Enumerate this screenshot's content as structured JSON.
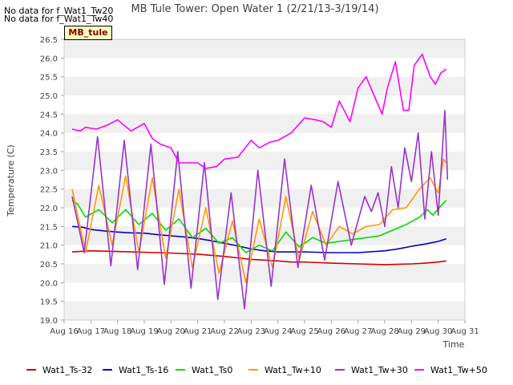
{
  "notes": [
    "No data for f_Wat1_Tw20",
    "No data for f_Wat1_Tw40"
  ],
  "site_tag": "MB_tule",
  "chart_data": {
    "type": "line",
    "title": "MB Tule Tower: Open Water 1 (2/21/13-3/19/14)",
    "xlabel": "Time",
    "ylabel": "Temperature (C)",
    "ylim": [
      19.0,
      26.5
    ],
    "yticks": [
      "19.0",
      "19.5",
      "20.0",
      "20.5",
      "21.0",
      "21.5",
      "22.0",
      "22.5",
      "23.0",
      "23.5",
      "24.0",
      "24.5",
      "25.0",
      "25.5",
      "26.0",
      "26.5"
    ],
    "xlim": [
      16,
      31
    ],
    "xticks": [
      {
        "x": 16,
        "label": "Aug 16"
      },
      {
        "x": 17,
        "label": "Aug 17"
      },
      {
        "x": 18,
        "label": "Aug 18"
      },
      {
        "x": 19,
        "label": "Aug 19"
      },
      {
        "x": 20,
        "label": "Aug 20"
      },
      {
        "x": 21,
        "label": "Aug 21"
      },
      {
        "x": 22,
        "label": "Aug 22"
      },
      {
        "x": 23,
        "label": "Aug 23"
      },
      {
        "x": 24,
        "label": "Aug 24"
      },
      {
        "x": 25,
        "label": "Aug 25"
      },
      {
        "x": 26,
        "label": "Aug 26"
      },
      {
        "x": 27,
        "label": "Aug 27"
      },
      {
        "x": 28,
        "label": "Aug 28"
      },
      {
        "x": 29,
        "label": "Aug 29"
      },
      {
        "x": 30,
        "label": "Aug 30"
      },
      {
        "x": 31,
        "label": "Aug 31"
      }
    ],
    "grid": "horizontal bands",
    "legend_position": "bottom",
    "series": [
      {
        "name": "Wat1_Ts-32",
        "color": "#cc0000",
        "x": [
          16.3,
          17,
          18,
          19,
          20,
          21,
          22,
          22.5,
          23,
          23.5,
          24,
          24.5,
          25,
          26,
          27,
          28,
          29,
          29.5,
          30,
          30.3
        ],
        "y": [
          20.82,
          20.85,
          20.83,
          20.81,
          20.79,
          20.76,
          20.7,
          20.66,
          20.62,
          20.6,
          20.58,
          20.55,
          20.55,
          20.52,
          20.5,
          20.48,
          20.5,
          20.52,
          20.55,
          20.58
        ]
      },
      {
        "name": "Wat1_Ts-16",
        "color": "#0000cc",
        "x": [
          16.3,
          16.7,
          17,
          17.5,
          18,
          18.5,
          19,
          19.5,
          20,
          20.5,
          21,
          21.5,
          22,
          22.5,
          23,
          23.5,
          24,
          25,
          26,
          27,
          28,
          28.5,
          29,
          29.5,
          30,
          30.3
        ],
        "y": [
          21.5,
          21.48,
          21.42,
          21.38,
          21.35,
          21.33,
          21.32,
          21.28,
          21.25,
          21.22,
          21.18,
          21.12,
          21.05,
          20.98,
          20.9,
          20.85,
          20.82,
          20.82,
          20.8,
          20.8,
          20.85,
          20.9,
          20.97,
          21.03,
          21.1,
          21.17
        ]
      },
      {
        "name": "Wat1_Ts0",
        "color": "#00dd00",
        "x": [
          16.3,
          16.5,
          16.8,
          17.3,
          17.8,
          18.3,
          18.8,
          19.3,
          19.8,
          20.3,
          20.8,
          21.3,
          21.8,
          22.3,
          22.8,
          23.3,
          23.8,
          24.3,
          24.8,
          25.3,
          25.8,
          26.3,
          26.8,
          27.3,
          27.8,
          28.3,
          28.8,
          29.3,
          29.6,
          29.8,
          30.1,
          30.3
        ],
        "y": [
          22.2,
          22.1,
          21.75,
          21.95,
          21.6,
          21.95,
          21.55,
          21.85,
          21.4,
          21.7,
          21.2,
          21.45,
          21.05,
          21.2,
          20.8,
          21.0,
          20.85,
          21.35,
          20.95,
          21.2,
          21.05,
          21.1,
          21.15,
          21.2,
          21.25,
          21.4,
          21.55,
          21.75,
          21.95,
          21.8,
          22.05,
          22.2
        ]
      },
      {
        "name": "Wat1_Tw+10",
        "color": "#ff9900",
        "x": [
          16.3,
          16.8,
          17.3,
          17.8,
          18.3,
          18.8,
          19.3,
          19.8,
          20.3,
          20.8,
          21.3,
          21.8,
          22.3,
          22.8,
          23.3,
          23.8,
          24.3,
          24.8,
          25.3,
          25.8,
          26.3,
          26.8,
          27.3,
          27.8,
          28.3,
          28.8,
          29.3,
          29.7,
          30.0,
          30.2,
          30.3
        ],
        "y": [
          22.5,
          20.8,
          22.6,
          21.0,
          22.85,
          20.8,
          22.8,
          20.65,
          22.5,
          20.4,
          22.0,
          20.25,
          21.65,
          20.0,
          21.7,
          20.4,
          22.3,
          20.6,
          21.9,
          21.0,
          21.5,
          21.3,
          21.5,
          21.55,
          21.95,
          22.0,
          22.5,
          22.8,
          22.4,
          23.3,
          23.2
        ]
      },
      {
        "name": "Wat1_Tw+30",
        "color": "#9933cc",
        "x": [
          16.3,
          16.75,
          17.25,
          17.75,
          18.25,
          18.75,
          19.25,
          19.75,
          20.25,
          20.75,
          21.25,
          21.75,
          22.25,
          22.75,
          23.25,
          23.75,
          24.25,
          24.75,
          25.25,
          25.75,
          26.25,
          26.75,
          27.25,
          27.5,
          27.75,
          28.0,
          28.25,
          28.5,
          28.75,
          29.0,
          29.25,
          29.5,
          29.75,
          30.0,
          30.25,
          30.35
        ],
        "y": [
          22.3,
          20.8,
          23.9,
          20.45,
          23.8,
          20.35,
          23.7,
          19.95,
          23.5,
          19.85,
          23.2,
          19.55,
          22.4,
          19.3,
          23.0,
          19.9,
          23.3,
          20.4,
          22.6,
          20.6,
          22.7,
          21.0,
          22.3,
          21.9,
          22.4,
          21.5,
          23.1,
          22.0,
          23.6,
          22.7,
          24.0,
          21.7,
          23.5,
          21.8,
          24.6,
          22.75
        ]
      },
      {
        "name": "Wat1_Tw+50",
        "color": "#ff00ff",
        "x": [
          16.3,
          16.6,
          16.8,
          17.2,
          17.6,
          18.0,
          18.5,
          19.0,
          19.3,
          19.6,
          20.0,
          20.3,
          20.7,
          21.0,
          21.3,
          21.7,
          22.0,
          22.5,
          23.0,
          23.3,
          23.7,
          24.0,
          24.5,
          25.0,
          25.4,
          25.7,
          26.0,
          26.3,
          26.7,
          27.0,
          27.3,
          27.6,
          27.9,
          28.1,
          28.4,
          28.7,
          28.9,
          29.1,
          29.4,
          29.7,
          29.9,
          30.1,
          30.3
        ],
        "y": [
          24.1,
          24.05,
          24.15,
          24.1,
          24.2,
          24.35,
          24.05,
          24.25,
          23.85,
          23.7,
          23.6,
          23.2,
          23.2,
          23.2,
          23.05,
          23.1,
          23.3,
          23.35,
          23.8,
          23.6,
          23.75,
          23.8,
          24.0,
          24.4,
          24.35,
          24.3,
          24.15,
          24.85,
          24.3,
          25.2,
          25.5,
          25.0,
          24.5,
          25.2,
          25.9,
          24.6,
          24.6,
          25.8,
          26.1,
          25.5,
          25.3,
          25.6,
          25.7
        ]
      }
    ]
  }
}
